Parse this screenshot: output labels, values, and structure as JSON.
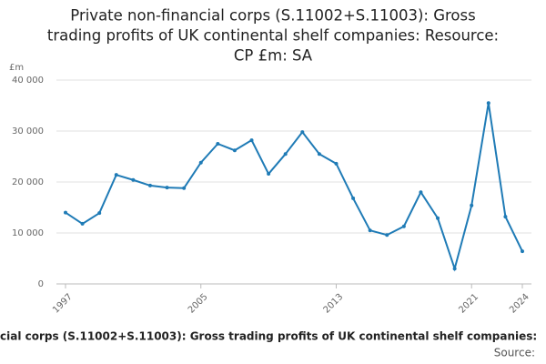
{
  "chart_data": {
    "type": "line",
    "title": [
      "Private non-financial corps (S.11002+S.11003): Gross",
      "trading profits of UK continental shelf companies: Resource:",
      "CP £m: SA"
    ],
    "y_label": "£m",
    "footer": "cial corps (S.11002+S.11003): Gross trading profits of UK continental shelf companies:",
    "source": "Source:",
    "x": [
      1997,
      1998,
      1999,
      2000,
      2001,
      2002,
      2003,
      2004,
      2005,
      2006,
      2007,
      2008,
      2009,
      2010,
      2011,
      2012,
      2013,
      2014,
      2015,
      2016,
      2017,
      2018,
      2019,
      2020,
      2021,
      2022,
      2023,
      2024
    ],
    "series": [
      {
        "name": "Gross trading profits",
        "color": "#1f7bb6",
        "values": [
          14000,
          11800,
          13900,
          21400,
          20400,
          19300,
          18900,
          18800,
          23800,
          27500,
          26200,
          28200,
          21600,
          25500,
          29800,
          25500,
          23600,
          16800,
          10500,
          9600,
          11300,
          18000,
          12900,
          3000,
          15400,
          35500,
          13200,
          6400
        ]
      }
    ],
    "xlim": [
      1997,
      2024
    ],
    "xticks": [
      1997,
      2005,
      2013,
      2021,
      2024
    ],
    "ylim": [
      0,
      40000
    ],
    "yticks": [
      0,
      {
        "value": 10000,
        "label": "10 000"
      },
      {
        "value": 20000,
        "label": "20 000"
      },
      {
        "value": 30000,
        "label": "30 000"
      },
      {
        "value": 40000,
        "label": "40 000"
      }
    ],
    "grid": true
  }
}
